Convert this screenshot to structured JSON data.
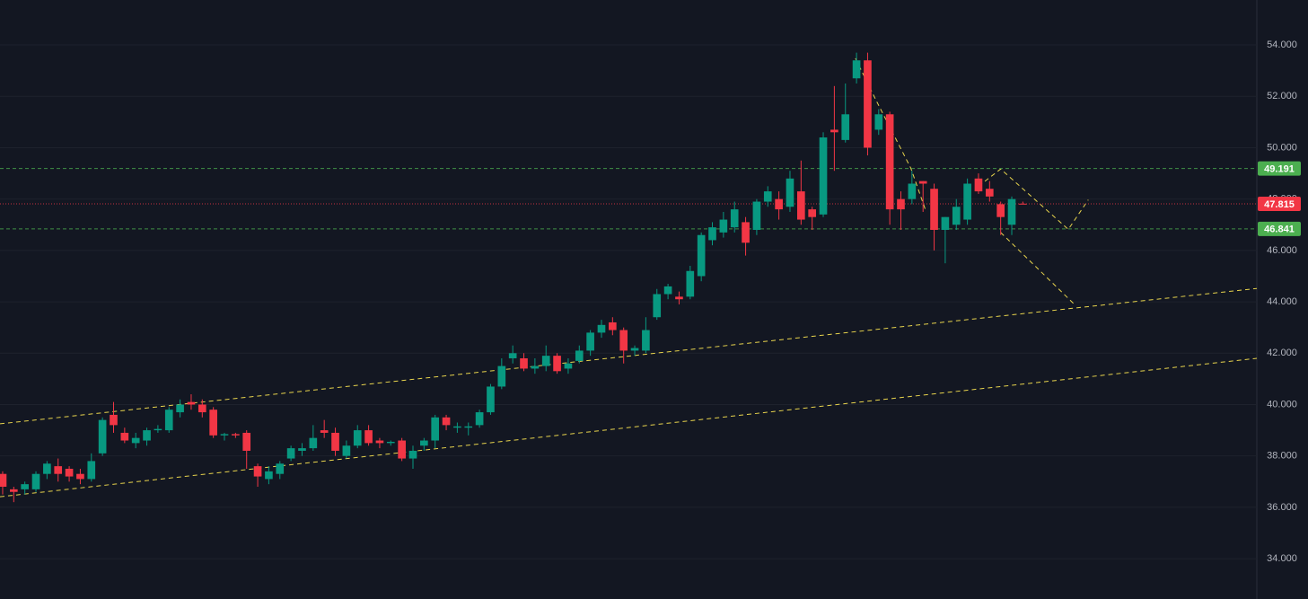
{
  "chart_data": {
    "type": "candlestick",
    "open": [
      37.3,
      36.7,
      36.7,
      36.7,
      37.3,
      37.6,
      37.5,
      37.3,
      37.1,
      38.1,
      39.6,
      38.9,
      38.5,
      38.6,
      39.0,
      39.0,
      39.7,
      40.1,
      40.0,
      39.8,
      38.8,
      38.85,
      38.9,
      37.6,
      37.1,
      37.3,
      37.9,
      38.2,
      38.3,
      39.0,
      38.9,
      38.0,
      38.4,
      39.0,
      38.6,
      38.5,
      38.6,
      37.9,
      38.4,
      38.6,
      39.5,
      39.1,
      39.1,
      39.2,
      39.7,
      40.7,
      41.8,
      41.8,
      41.4,
      41.5,
      41.9,
      41.4,
      41.7,
      42.1,
      42.8,
      43.2,
      42.9,
      42.1,
      42.1,
      43.4,
      44.3,
      44.2,
      44.2,
      45.0,
      46.4,
      46.7,
      46.9,
      47.1,
      46.8,
      47.9,
      48.0,
      47.7,
      48.3,
      47.6,
      47.4,
      50.7,
      50.3,
      52.7,
      53.4,
      50.7,
      51.3,
      48.0,
      48.0,
      48.7,
      48.4,
      46.8,
      47.0,
      47.2,
      48.8,
      48.4,
      47.8,
      47.0,
      47.82
    ],
    "high": [
      37.4,
      36.8,
      37.0,
      37.4,
      37.8,
      37.9,
      37.6,
      37.5,
      38.1,
      39.5,
      40.1,
      39.1,
      38.9,
      39.1,
      39.2,
      39.9,
      40.2,
      40.4,
      40.2,
      39.9,
      38.9,
      38.9,
      39.0,
      37.7,
      37.6,
      37.8,
      38.4,
      38.5,
      39.2,
      39.4,
      39.1,
      38.6,
      39.2,
      39.2,
      38.7,
      38.6,
      38.7,
      38.4,
      38.7,
      39.6,
      39.6,
      39.3,
      39.3,
      39.8,
      40.8,
      41.8,
      42.3,
      42.0,
      41.8,
      42.3,
      42.0,
      41.8,
      42.3,
      42.9,
      43.3,
      43.4,
      43.0,
      42.3,
      43.4,
      44.5,
      44.7,
      44.4,
      45.4,
      46.7,
      47.1,
      47.5,
      47.9,
      47.3,
      48.0,
      48.5,
      48.3,
      49.1,
      49.5,
      47.7,
      50.6,
      52.4,
      52.5,
      53.7,
      53.7,
      51.5,
      51.4,
      48.3,
      49.1,
      48.7,
      48.6,
      47.3,
      48.0,
      48.8,
      49.0,
      48.7,
      47.9,
      48.1,
      47.9
    ],
    "low": [
      36.5,
      36.2,
      36.5,
      36.6,
      37.1,
      37.0,
      37.0,
      36.9,
      37.0,
      38.0,
      38.9,
      38.5,
      38.3,
      38.4,
      38.9,
      38.9,
      39.5,
      39.8,
      39.5,
      38.7,
      38.6,
      38.7,
      37.5,
      36.8,
      36.9,
      37.1,
      37.8,
      38.0,
      38.2,
      38.7,
      38.0,
      37.9,
      38.3,
      38.4,
      38.3,
      38.4,
      37.8,
      37.5,
      38.2,
      38.3,
      39.0,
      38.9,
      38.8,
      39.1,
      39.6,
      40.6,
      41.6,
      41.3,
      41.2,
      41.3,
      41.2,
      41.2,
      41.6,
      41.9,
      42.6,
      42.7,
      41.6,
      41.9,
      42.0,
      43.3,
      44.1,
      43.9,
      44.1,
      44.8,
      46.2,
      46.5,
      46.7,
      45.8,
      46.6,
      47.7,
      47.2,
      47.5,
      47.0,
      46.8,
      47.3,
      49.1,
      50.2,
      52.5,
      49.7,
      50.5,
      47.0,
      46.8,
      47.8,
      47.5,
      46.0,
      45.5,
      46.8,
      47.0,
      48.2,
      47.9,
      46.6,
      46.6,
      47.8
    ],
    "close": [
      36.8,
      36.6,
      36.9,
      37.3,
      37.7,
      37.3,
      37.2,
      37.1,
      37.8,
      39.4,
      39.2,
      38.6,
      38.7,
      39.0,
      39.05,
      39.8,
      40.0,
      40.0,
      39.7,
      38.8,
      38.85,
      38.8,
      38.2,
      37.2,
      37.4,
      37.7,
      38.3,
      38.3,
      38.7,
      38.9,
      38.2,
      38.4,
      39.0,
      38.5,
      38.5,
      38.55,
      37.9,
      38.2,
      38.6,
      39.5,
      39.2,
      39.15,
      39.15,
      39.7,
      40.7,
      41.5,
      42.0,
      41.4,
      41.5,
      41.9,
      41.3,
      41.6,
      42.1,
      42.8,
      43.1,
      42.9,
      42.1,
      42.2,
      42.9,
      44.3,
      44.6,
      44.1,
      45.2,
      46.6,
      46.9,
      47.2,
      47.6,
      46.3,
      47.9,
      48.3,
      47.6,
      48.8,
      47.2,
      47.3,
      50.4,
      50.6,
      51.3,
      53.4,
      50.0,
      51.3,
      47.6,
      47.6,
      48.6,
      48.6,
      46.8,
      47.3,
      47.7,
      48.6,
      48.3,
      48.1,
      47.3,
      48.0,
      47.815
    ],
    "up_color": "#089981",
    "down_color": "#f23645",
    "xlim": [
      -0.24,
      113.1
    ],
    "ylim": [
      32.43,
      55.75
    ],
    "yticks": [
      {
        "value": 34,
        "label": "34.000"
      },
      {
        "value": 36,
        "label": "36.000"
      },
      {
        "value": 38,
        "label": "38.000"
      },
      {
        "value": 40,
        "label": "40.000"
      },
      {
        "value": 42,
        "label": "42.000"
      },
      {
        "value": 44,
        "label": "44.000"
      },
      {
        "value": 46,
        "label": "46.000"
      },
      {
        "value": 48,
        "label": "48.000"
      },
      {
        "value": 50,
        "label": "50.000"
      },
      {
        "value": 52,
        "label": "52.000"
      },
      {
        "value": 54,
        "label": "54.000"
      }
    ],
    "grid": true,
    "price_lines": [
      {
        "value": 49.191,
        "color": "#4caf50",
        "style": "dashed"
      },
      {
        "value": 47.815,
        "color": "#f23645",
        "style": "dotted"
      },
      {
        "value": 46.841,
        "color": "#4caf50",
        "style": "dashed"
      }
    ],
    "drawings": [
      {
        "color": "#e8d44d",
        "points": [
          [
            -0.24,
            39.25
          ],
          [
            113.1,
            44.52
          ]
        ]
      },
      {
        "color": "#e8d44d",
        "points": [
          [
            -0.24,
            36.41
          ],
          [
            113.1,
            41.8
          ]
        ]
      },
      {
        "color": "#e8d44d",
        "points": [
          [
            76.9,
            53.48
          ],
          [
            78.7,
            51.9
          ],
          [
            81.9,
            49.2
          ],
          [
            83.2,
            47.6
          ]
        ]
      },
      {
        "color": "#e8d44d",
        "points": [
          [
            88.0,
            48.5
          ],
          [
            90.0,
            49.17
          ],
          [
            96.1,
            46.82
          ],
          [
            97.9,
            47.97
          ]
        ]
      },
      {
        "color": "#e8d44d",
        "points": [
          [
            90.0,
            46.7
          ],
          [
            96.7,
            43.88
          ]
        ]
      }
    ]
  }
}
